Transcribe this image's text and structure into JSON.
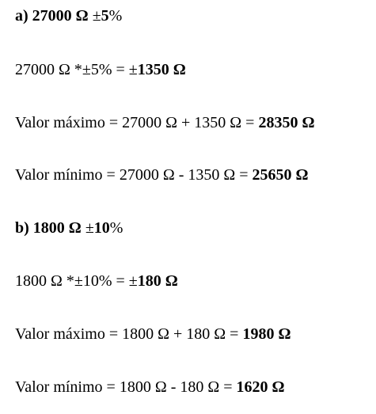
{
  "part_a": {
    "heading_label": "a)",
    "heading_value": "27000 Ω",
    "heading_tolerance_sign": "±",
    "heading_tolerance_number": "5",
    "heading_tolerance_percent": "%",
    "calc_expression": "27000 Ω *±5% = ",
    "calc_result_sign": "±",
    "calc_result_value": "1350 Ω",
    "max_expression": "Valor máximo = 27000 Ω + 1350 Ω = ",
    "max_result": "28350 Ω",
    "min_expression": "Valor mínimo = 27000 Ω - 1350 Ω = ",
    "min_result": "25650 Ω"
  },
  "part_b": {
    "heading_label": "b)",
    "heading_value": "1800 Ω",
    "heading_tolerance_sign": "±",
    "heading_tolerance_number": "10",
    "heading_tolerance_percent": "%",
    "calc_expression": "1800 Ω *±10% = ",
    "calc_result_sign": "±",
    "calc_result_value": "180 Ω",
    "max_expression": "Valor máximo = 1800 Ω + 180 Ω = ",
    "max_result": "1980 Ω",
    "min_expression": "Valor mínimo = 1800 Ω - 180 Ω = ",
    "min_result": "1620 Ω"
  }
}
